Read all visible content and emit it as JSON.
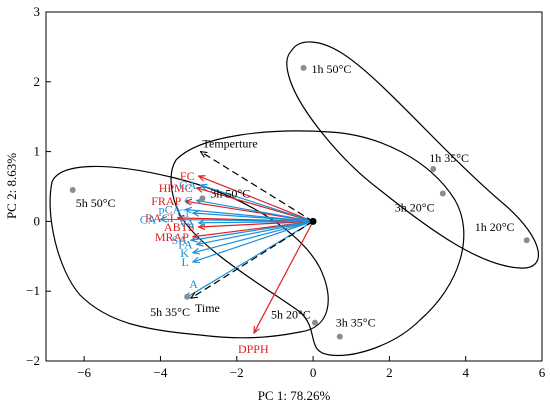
{
  "chart_data": {
    "type": "scatter",
    "title": "",
    "xlabel": "PC 1: 78.26%",
    "ylabel": "PC 2: 8.63%",
    "xlim": [
      -7.0,
      6.0
    ],
    "ylim": [
      -2.0,
      3.0
    ],
    "xticks": [
      "−6",
      "−4",
      "−2",
      "0",
      "2",
      "4",
      "6"
    ],
    "xtick_values": [
      -6,
      -4,
      -2,
      0,
      2,
      4,
      6
    ],
    "yticks": [
      "−2",
      "−1",
      "0",
      "1",
      "2",
      "3"
    ],
    "ytick_values": [
      -2,
      -1,
      0,
      1,
      2,
      3
    ],
    "grid": false,
    "colors": {
      "red": "#e02020",
      "blue": "#1a90d9",
      "black": "#000000",
      "point": "#8c8c8c"
    },
    "points": [
      {
        "label": "1h 50°C",
        "x": -0.25,
        "y": 2.2
      },
      {
        "label": "3h 50°C",
        "x": -2.9,
        "y": 0.33
      },
      {
        "label": "1h 35°C",
        "x": 3.15,
        "y": 0.75
      },
      {
        "label": "3h 20°C",
        "x": 3.4,
        "y": 0.4
      },
      {
        "label": "1h 20°C",
        "x": 5.6,
        "y": -0.27
      },
      {
        "label": "5h 50°C",
        "x": -6.3,
        "y": 0.45
      },
      {
        "label": "5h 35°C",
        "x": -3.3,
        "y": -1.08
      },
      {
        "label": "5h 20°C",
        "x": 0.05,
        "y": -1.45
      },
      {
        "label": "3h 35°C",
        "x": 0.7,
        "y": -1.65
      }
    ],
    "vectors": [
      {
        "label": "FC",
        "color": "red",
        "x": -3.0,
        "y": 0.65
      },
      {
        "label": "HPMC",
        "color": "red",
        "x": -3.05,
        "y": 0.48
      },
      {
        "label": "FRAP",
        "color": "red",
        "x": -3.35,
        "y": 0.29
      },
      {
        "label": "RACI",
        "color": "red",
        "x": -3.55,
        "y": 0.05
      },
      {
        "label": "ABTS",
        "color": "red",
        "x": -3.0,
        "y": -0.08
      },
      {
        "label": "MRAP",
        "color": "red",
        "x": -3.15,
        "y": -0.22
      },
      {
        "label": "DPPH",
        "color": "red",
        "x": -1.55,
        "y": -1.6
      },
      {
        "label": "GA",
        "color": "blue",
        "x": -2.95,
        "y": 0.52
      },
      {
        "label": "pCA",
        "color": "blue",
        "x": -3.35,
        "y": 0.17
      },
      {
        "label": "C",
        "color": "blue",
        "x": -3.05,
        "y": 0.3
      },
      {
        "label": "Cl",
        "color": "blue",
        "x": -3.15,
        "y": 0.12
      },
      {
        "label": "CA",
        "color": "blue",
        "x": -4.0,
        "y": 0.03
      },
      {
        "label": "VA",
        "color": "blue",
        "x": -3.0,
        "y": -0.02
      },
      {
        "label": "SA",
        "color": "blue",
        "x": -3.2,
        "y": -0.27
      },
      {
        "label": "FA",
        "color": "blue",
        "x": -3.05,
        "y": -0.33
      },
      {
        "label": "K",
        "color": "blue",
        "x": -3.15,
        "y": -0.45
      },
      {
        "label": "L",
        "color": "blue",
        "x": -3.15,
        "y": -0.58
      },
      {
        "label": "A",
        "color": "blue",
        "x": -3.35,
        "y": -1.1
      },
      {
        "label": "Temperture",
        "color": "black",
        "dashed": true,
        "x": -2.95,
        "y": 1.0
      },
      {
        "label": "Time",
        "color": "black",
        "dashed": true,
        "x": -3.2,
        "y": -1.1
      }
    ]
  }
}
